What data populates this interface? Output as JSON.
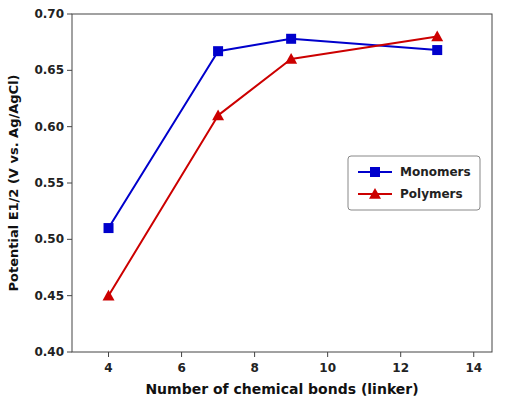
{
  "chart_data": {
    "type": "line",
    "xlabel": "Number of chemical bonds (linker)",
    "ylabel": "Potential E1/2 (V vs. Ag/AgCl)",
    "x": [
      4,
      7,
      9,
      13
    ],
    "series": [
      {
        "name": "Monomers",
        "color": "#0000cc",
        "marker": "square",
        "values": [
          0.51,
          0.667,
          0.678,
          0.668
        ]
      },
      {
        "name": "Polymers",
        "color": "#cc0000",
        "marker": "triangle",
        "values": [
          0.45,
          0.61,
          0.66,
          0.68
        ]
      }
    ],
    "xlim": [
      3,
      14.5
    ],
    "ylim": [
      0.4,
      0.7
    ],
    "xticks": [
      4,
      6,
      8,
      10,
      12,
      14
    ],
    "yticks": [
      {
        "value": 0.4,
        "label": "0.40"
      },
      0.45,
      {
        "value": 0.5,
        "label": "0.50"
      },
      0.55,
      {
        "value": 0.6,
        "label": "0.60"
      },
      0.65,
      {
        "value": 0.7,
        "label": "0.70"
      }
    ],
    "grid": false,
    "legend": "center right"
  }
}
